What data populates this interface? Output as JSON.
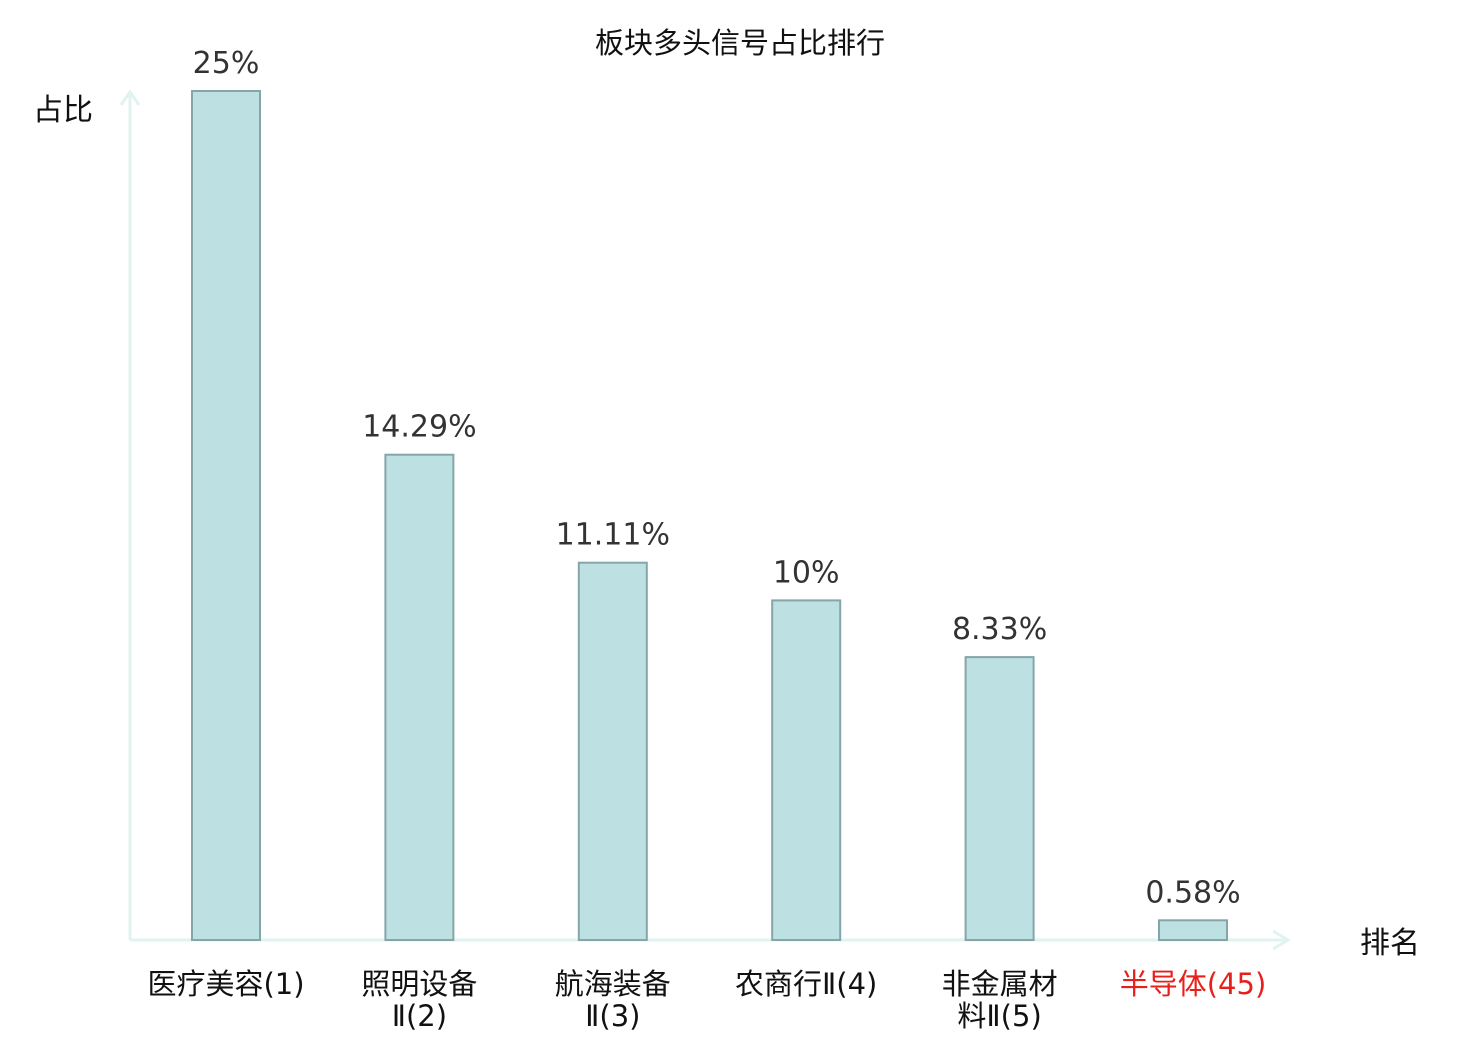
{
  "chart_data": {
    "type": "bar",
    "title": "板块多头信号占比排行",
    "xlabel": "排名",
    "ylabel": "占比",
    "ylim": [
      0,
      25
    ],
    "grid": false,
    "legend": "none",
    "categories": [
      [
        "医疗美容(1)"
      ],
      [
        "照明设备",
        "Ⅱ(2)"
      ],
      [
        "航海装备",
        "Ⅱ(3)"
      ],
      [
        "农商行Ⅱ(4)"
      ],
      [
        "非金属材",
        "料Ⅱ(5)"
      ],
      [
        "半导体(45)"
      ]
    ],
    "values": [
      25,
      14.29,
      11.11,
      10,
      8.33,
      0.58
    ],
    "value_labels": [
      "25%",
      "14.29%",
      "11.11%",
      "10%",
      "8.33%",
      "0.58%"
    ],
    "category_colors": [
      "#111111",
      "#111111",
      "#111111",
      "#111111",
      "#111111",
      "#e8201c"
    ]
  },
  "colors": {
    "bar_fill": "#bde1e3",
    "bar_stroke": "#86a5a8",
    "axis": "#e0f3f1",
    "highlight": "#e8201c"
  }
}
